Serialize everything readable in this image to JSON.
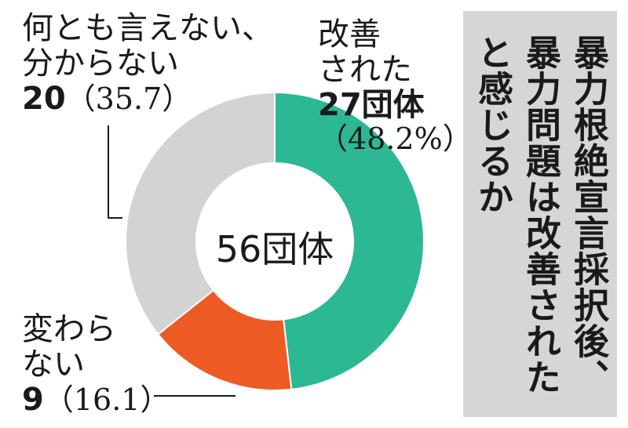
{
  "chart_data": {
    "type": "pie",
    "variant": "donut",
    "title_lines": [
      "暴力根絶宣言採択後、",
      "暴力問題は改善された",
      "と感じるか"
    ],
    "total_label": "56団体",
    "slices": [
      {
        "label_lines": [
          "改善",
          "された"
        ],
        "count_label": "27団体",
        "pct_label": "（48.2%）",
        "value": 27,
        "percent": 48.2,
        "color": "#2db894"
      },
      {
        "label_lines": [
          "変わら",
          "ない"
        ],
        "count_label": "9",
        "pct_label": "（16.1）",
        "value": 9,
        "percent": 16.1,
        "color": "#ee5a24"
      },
      {
        "label_lines": [
          "何とも言えない、",
          "分からない"
        ],
        "count_label": "20",
        "pct_label": "（35.7）",
        "value": 20,
        "percent": 35.7,
        "color": "#d3d3d3"
      }
    ]
  }
}
